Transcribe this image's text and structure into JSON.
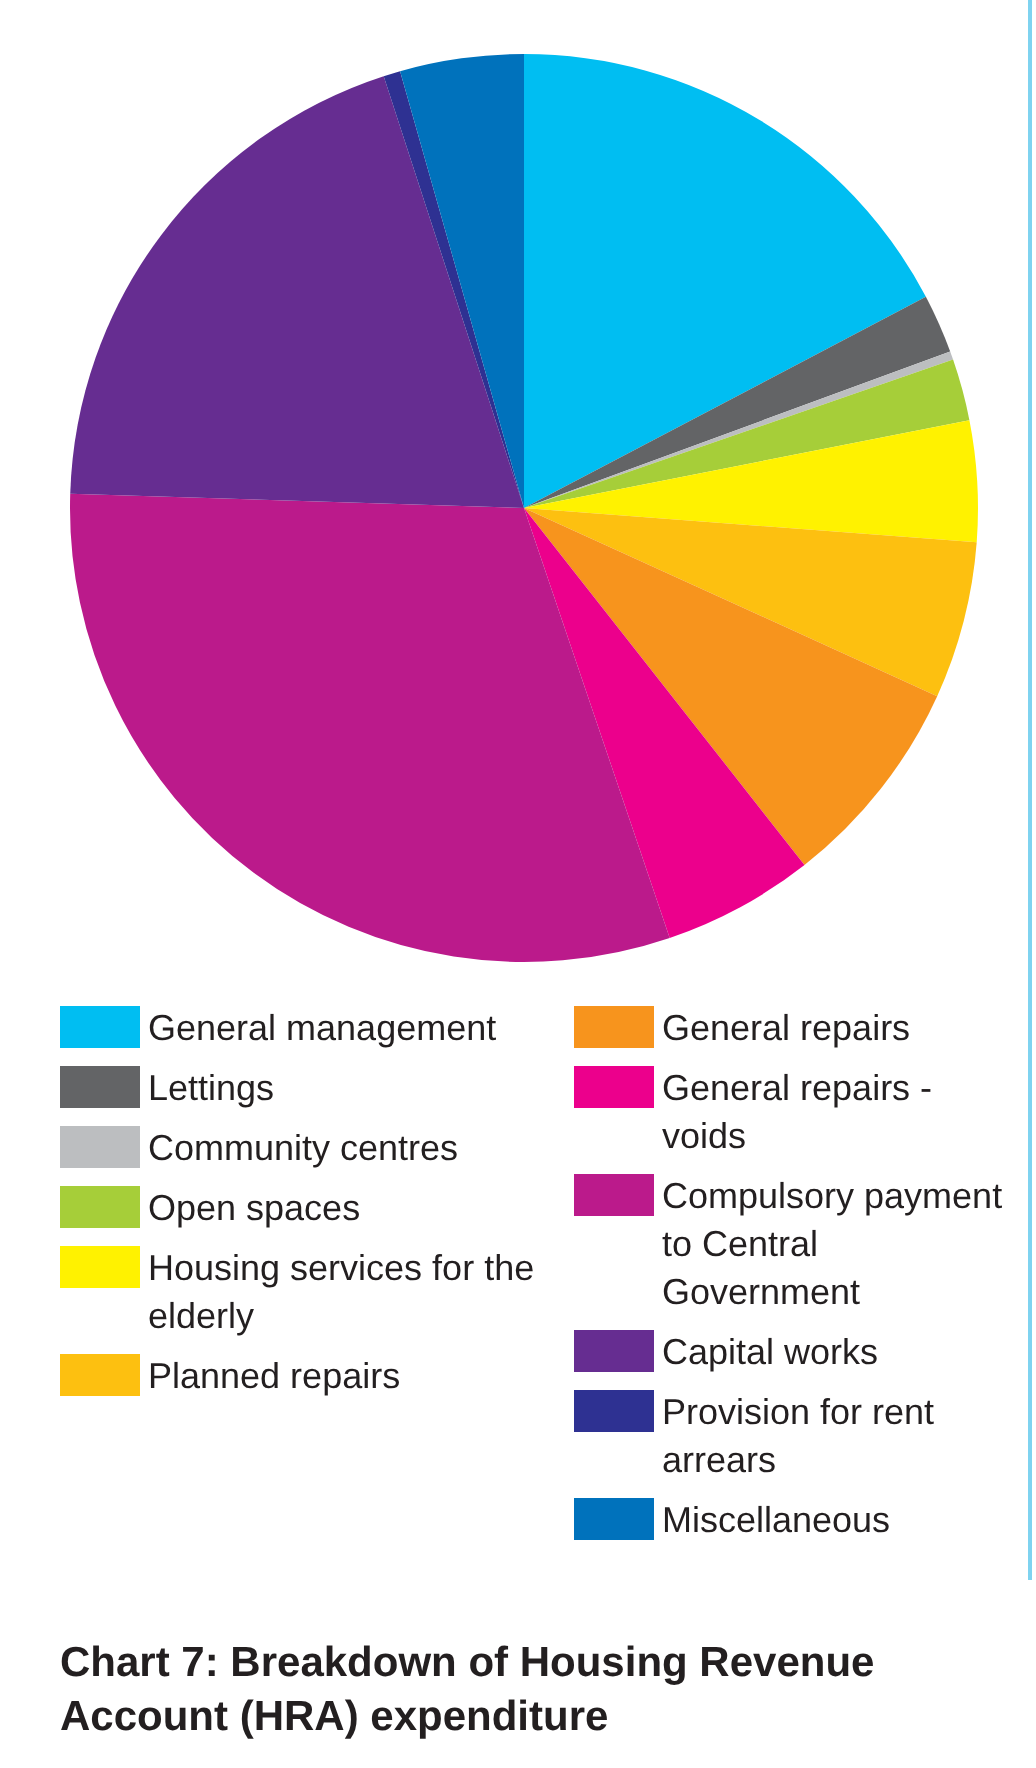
{
  "chart_data": {
    "type": "pie",
    "title": "Chart 7: Breakdown of Housing Revenue Account (HRA) expenditure",
    "categories": [
      "General management",
      "Lettings",
      "Community centres",
      "Open spaces",
      "Housing services for the elderly",
      "Planned repairs",
      "General repairs",
      "General repairs - voids",
      "Compulsory payment to Central Government",
      "Capital works",
      "Provision for rent arrears",
      "Miscellaneous"
    ],
    "values": [
      17.3,
      2.1,
      0.3,
      2.2,
      4.3,
      5.6,
      7.6,
      5.4,
      30.7,
      19.5,
      0.6,
      4.4
    ],
    "colors": [
      "#00bef2",
      "#636466",
      "#bcbec0",
      "#a6ce39",
      "#fff200",
      "#fdc010",
      "#f7941d",
      "#ec008c",
      "#bb1a8b",
      "#662d91",
      "#2e3192",
      "#0072bc"
    ],
    "legend": "bottom"
  }
}
